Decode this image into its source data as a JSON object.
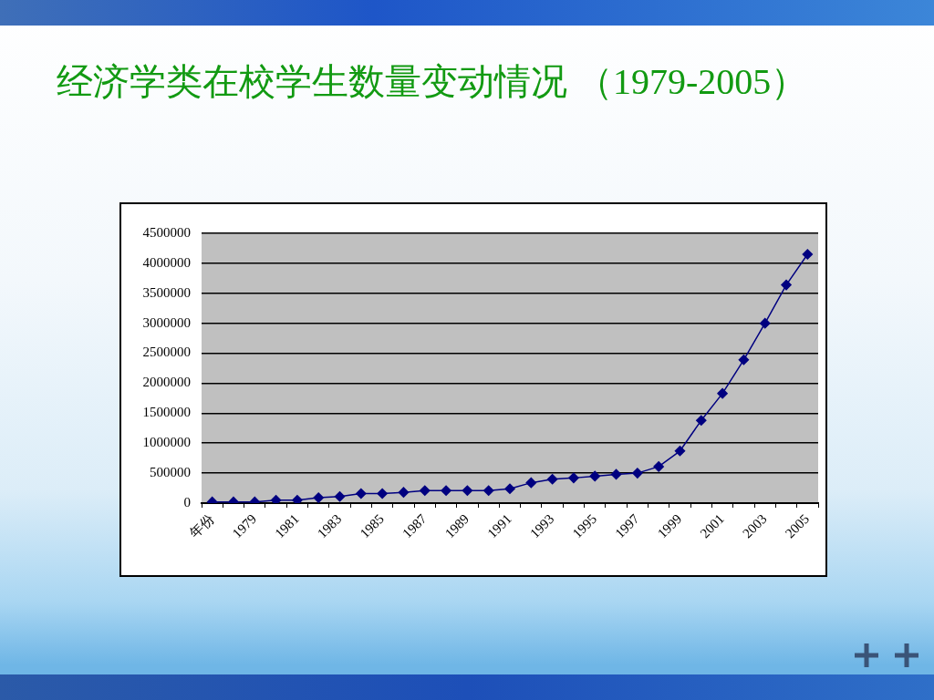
{
  "chart_data": {
    "type": "line",
    "title": "经济学类在校学生数量变动情况 （1979-2005）",
    "categories": [
      "年份",
      null,
      "1979",
      null,
      "1981",
      null,
      "1983",
      null,
      "1985",
      null,
      "1987",
      null,
      "1989",
      null,
      "1991",
      null,
      "1993",
      null,
      "1995",
      null,
      "1997",
      null,
      "1999",
      null,
      "2001",
      null,
      "2003",
      null,
      "2005"
    ],
    "values": [
      20000,
      20000,
      20000,
      50000,
      50000,
      90000,
      110000,
      160000,
      160000,
      180000,
      210000,
      210000,
      210000,
      210000,
      240000,
      340000,
      400000,
      420000,
      450000,
      480000,
      500000,
      610000,
      870000,
      1380000,
      1830000,
      2390000,
      3000000,
      3640000,
      4150000
    ],
    "color": "#000080",
    "marker": "diamond",
    "line_style": "solid",
    "ylim": [
      0,
      4500000
    ],
    "yticks": [
      0,
      500000,
      1000000,
      1500000,
      2000000,
      2500000,
      3000000,
      3500000,
      4000000,
      4500000
    ],
    "grid": "y"
  }
}
